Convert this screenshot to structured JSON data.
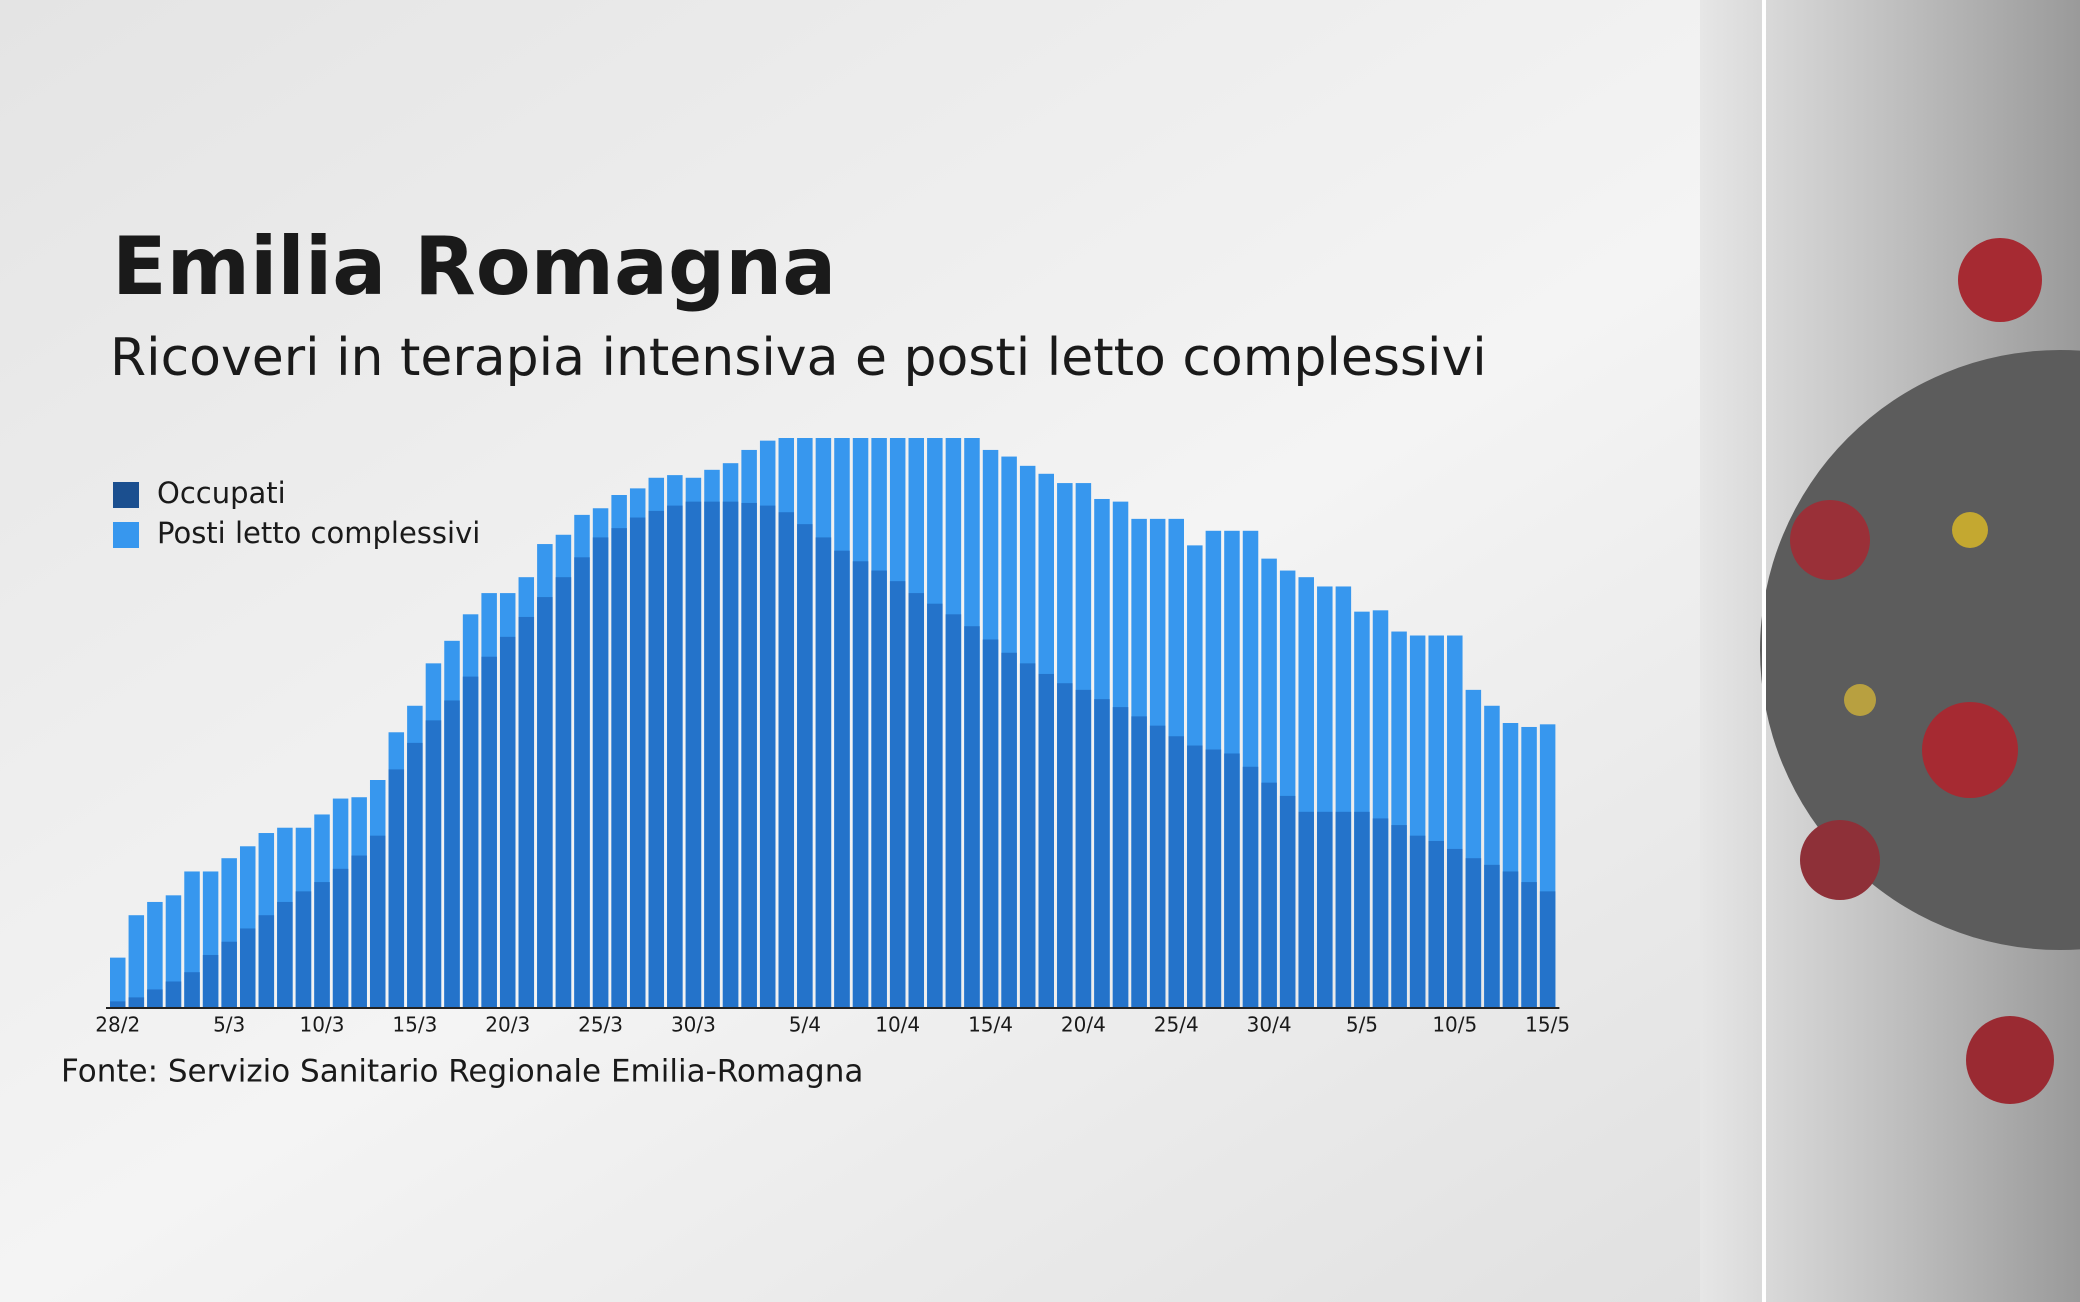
{
  "chart_data": {
    "type": "bar",
    "title": "Emilia Romagna",
    "subtitle": "Ricoveri in terapia intensiva e posti letto complessivi",
    "source": "Fonte: Servizio Sanitario Regionale Emilia-Romagna",
    "categories": [
      "28/2",
      null,
      null,
      null,
      null,
      null,
      "5/3",
      null,
      null,
      null,
      null,
      "10/3",
      null,
      null,
      null,
      null,
      "15/3",
      null,
      null,
      null,
      null,
      "20/3",
      null,
      null,
      null,
      null,
      "25/3",
      null,
      null,
      null,
      null,
      "30/3",
      null,
      null,
      null,
      null,
      null,
      "5/4",
      null,
      null,
      null,
      null,
      "10/4",
      null,
      null,
      null,
      null,
      "15/4",
      null,
      null,
      null,
      null,
      "20/4",
      null,
      null,
      null,
      null,
      "25/4",
      null,
      null,
      null,
      null,
      "30/4",
      null,
      null,
      null,
      null,
      "5/5",
      null,
      null,
      null,
      null,
      "10/5",
      null,
      null,
      null,
      null,
      "15/5"
    ],
    "series": [
      {
        "name": "Posti letto complessivi",
        "color": "#3797ee",
        "values": [
          38,
          70,
          80,
          85,
          103,
          103,
          113,
          122,
          132,
          136,
          136,
          146,
          158,
          159,
          172,
          208,
          228,
          260,
          277,
          297,
          313,
          313,
          325,
          350,
          357,
          372,
          377,
          387,
          392,
          400,
          402,
          400,
          406,
          411,
          421,
          428,
          430,
          430,
          430,
          430,
          430,
          430,
          430,
          430,
          430,
          430,
          430,
          421,
          416,
          409,
          403,
          396,
          396,
          384,
          382,
          369,
          369,
          369,
          349,
          360,
          360,
          360,
          339,
          330,
          325,
          318,
          318,
          299,
          300,
          284,
          281,
          281,
          281,
          240,
          228,
          215,
          212,
          214
        ]
      },
      {
        "name": "Occupati",
        "color": "#2473ca",
        "values": [
          5,
          8,
          14,
          20,
          27,
          40,
          50,
          60,
          70,
          80,
          88,
          95,
          105,
          115,
          130,
          180,
          200,
          217,
          232,
          250,
          265,
          280,
          295,
          310,
          325,
          340,
          355,
          362,
          370,
          375,
          379,
          382,
          382,
          382,
          381,
          379,
          374,
          365,
          355,
          345,
          337,
          330,
          322,
          313,
          305,
          297,
          288,
          278,
          268,
          260,
          252,
          245,
          240,
          233,
          227,
          220,
          213,
          205,
          198,
          195,
          192,
          182,
          170,
          160,
          148,
          148,
          148,
          148,
          143,
          138,
          130,
          126,
          120,
          113,
          108,
          103,
          95,
          88
        ]
      }
    ],
    "legend_colors": [
      "#1b4f8f",
      "#3797ee"
    ]
  }
}
